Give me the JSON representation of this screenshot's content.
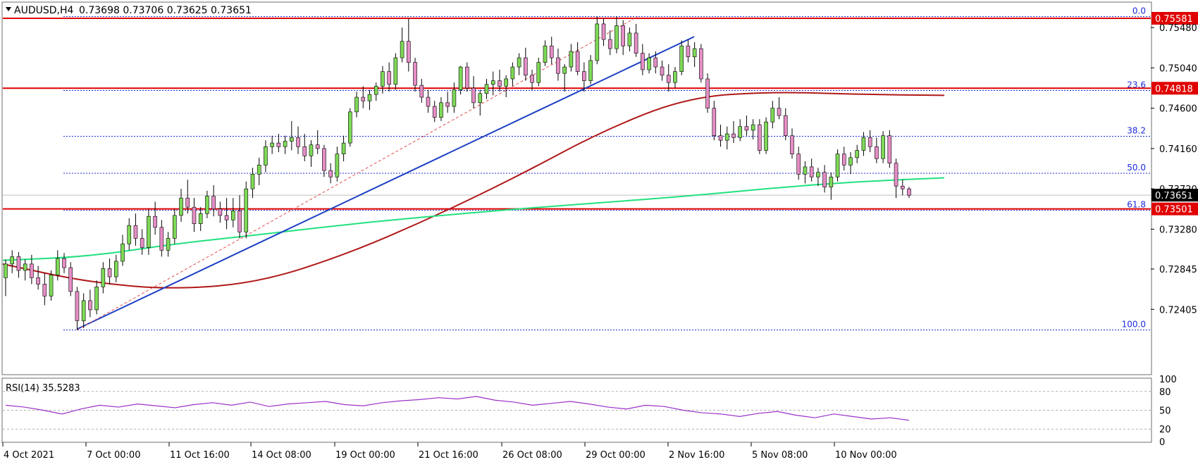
{
  "chart_data": {
    "type": "candlestick",
    "symbol_header": "AUDUSD,H4",
    "ohlc_header": [
      "0.73698",
      "0.73706",
      "0.73625",
      "0.73651"
    ],
    "current_price": "0.73651",
    "price_ticks": [
      "0.75480",
      "0.75040",
      "0.74600",
      "0.74160",
      "0.73720",
      "0.73280",
      "0.72845",
      "0.72405"
    ],
    "time_labels": [
      "4 Oct 2021",
      "7 Oct 00:00",
      "11 Oct 16:00",
      "14 Oct 08:00",
      "19 Oct 00:00",
      "21 Oct 16:00",
      "26 Oct 08:00",
      "29 Oct 00:00",
      "2 Nov 16:00",
      "5 Nov 08:00",
      "10 Nov 00:00"
    ],
    "horizontal_levels": [
      {
        "value": 0.75581,
        "label": "0.75581"
      },
      {
        "value": 0.74818,
        "label": "0.74818"
      },
      {
        "value": 0.73501,
        "label": "0.73501"
      }
    ],
    "fibonacci": {
      "high": 0.756,
      "low": 0.7218,
      "levels": [
        {
          "ratio": 0.0,
          "label": "0.0"
        },
        {
          "ratio": 0.236,
          "label": "23.6"
        },
        {
          "ratio": 0.382,
          "label": "38.2"
        },
        {
          "ratio": 0.5,
          "label": "50.0"
        },
        {
          "ratio": 0.618,
          "label": "61.8"
        },
        {
          "ratio": 1.0,
          "label": "100.0"
        }
      ]
    },
    "trendline": {
      "from": [
        0.7219
      ],
      "to": [
        0.7538
      ]
    },
    "ma_fast": [
      0.7294,
      0.7298,
      0.7312,
      0.7322,
      0.7333,
      0.7342,
      0.735,
      0.7357,
      0.7364,
      0.7373,
      0.738,
      0.7384
    ],
    "ma_slow": [
      0.729,
      0.727,
      0.7262,
      0.727,
      0.73,
      0.734,
      0.7385,
      0.7435,
      0.7472,
      0.7478,
      0.7475,
      0.7474
    ],
    "candles": [
      [
        0.7275,
        0.7295,
        0.7255,
        0.729
      ],
      [
        0.729,
        0.7305,
        0.728,
        0.7298
      ],
      [
        0.7298,
        0.7303,
        0.7275,
        0.7283
      ],
      [
        0.7283,
        0.7295,
        0.7272,
        0.729
      ],
      [
        0.729,
        0.73,
        0.7268,
        0.7275
      ],
      [
        0.7275,
        0.7288,
        0.7262,
        0.7268
      ],
      [
        0.7268,
        0.728,
        0.7245,
        0.7255
      ],
      [
        0.7255,
        0.7283,
        0.725,
        0.7278
      ],
      [
        0.7278,
        0.7305,
        0.7272,
        0.7296
      ],
      [
        0.7296,
        0.7302,
        0.728,
        0.7286
      ],
      [
        0.7286,
        0.7292,
        0.7255,
        0.726
      ],
      [
        0.726,
        0.7265,
        0.7218,
        0.7228
      ],
      [
        0.7228,
        0.7258,
        0.722,
        0.725
      ],
      [
        0.725,
        0.7262,
        0.7232,
        0.724
      ],
      [
        0.724,
        0.7272,
        0.7235,
        0.7265
      ],
      [
        0.7265,
        0.7292,
        0.7258,
        0.7285
      ],
      [
        0.7285,
        0.7296,
        0.7268,
        0.7276
      ],
      [
        0.7276,
        0.73,
        0.727,
        0.7293
      ],
      [
        0.7293,
        0.7322,
        0.7288,
        0.7312
      ],
      [
        0.7312,
        0.734,
        0.7305,
        0.7332
      ],
      [
        0.7332,
        0.7345,
        0.731,
        0.7318
      ],
      [
        0.7318,
        0.7328,
        0.73,
        0.7308
      ],
      [
        0.7308,
        0.735,
        0.73,
        0.7342
      ],
      [
        0.7342,
        0.7358,
        0.7322,
        0.733
      ],
      [
        0.733,
        0.7338,
        0.7298,
        0.7305
      ],
      [
        0.7305,
        0.7325,
        0.7298,
        0.7318
      ],
      [
        0.7318,
        0.735,
        0.7312,
        0.7343
      ],
      [
        0.7343,
        0.7372,
        0.7336,
        0.7362
      ],
      [
        0.7362,
        0.7382,
        0.7345,
        0.7352
      ],
      [
        0.7352,
        0.7362,
        0.7325,
        0.7334
      ],
      [
        0.7334,
        0.7352,
        0.7326,
        0.7345
      ],
      [
        0.7345,
        0.737,
        0.734,
        0.7364
      ],
      [
        0.7364,
        0.7376,
        0.7342,
        0.735
      ],
      [
        0.735,
        0.7358,
        0.7335,
        0.7343
      ],
      [
        0.7343,
        0.7362,
        0.7328,
        0.7338
      ],
      [
        0.7338,
        0.7362,
        0.733,
        0.7348
      ],
      [
        0.7348,
        0.7365,
        0.7318,
        0.7325
      ],
      [
        0.7325,
        0.738,
        0.7318,
        0.7372
      ],
      [
        0.7372,
        0.7395,
        0.7362,
        0.7388
      ],
      [
        0.7388,
        0.7406,
        0.7376,
        0.7398
      ],
      [
        0.7398,
        0.7425,
        0.739,
        0.7418
      ],
      [
        0.7418,
        0.743,
        0.741,
        0.7422
      ],
      [
        0.7422,
        0.7432,
        0.7412,
        0.7418
      ],
      [
        0.7418,
        0.743,
        0.741,
        0.7424
      ],
      [
        0.7424,
        0.7446,
        0.7414,
        0.7428
      ],
      [
        0.7428,
        0.744,
        0.741,
        0.7418
      ],
      [
        0.7418,
        0.7432,
        0.7402,
        0.7408
      ],
      [
        0.7408,
        0.7425,
        0.7396,
        0.742
      ],
      [
        0.742,
        0.7436,
        0.741,
        0.7416
      ],
      [
        0.7416,
        0.742,
        0.7385,
        0.7392
      ],
      [
        0.7392,
        0.74,
        0.7378,
        0.7385
      ],
      [
        0.7385,
        0.7418,
        0.738,
        0.741
      ],
      [
        0.741,
        0.743,
        0.7402,
        0.7422
      ],
      [
        0.7422,
        0.746,
        0.7418,
        0.7456
      ],
      [
        0.7456,
        0.7478,
        0.745,
        0.7472
      ],
      [
        0.7472,
        0.7484,
        0.746,
        0.7468
      ],
      [
        0.7468,
        0.748,
        0.7458,
        0.7475
      ],
      [
        0.7475,
        0.7488,
        0.7468,
        0.7484
      ],
      [
        0.7484,
        0.7506,
        0.7476,
        0.75
      ],
      [
        0.75,
        0.751,
        0.7478,
        0.7486
      ],
      [
        0.7486,
        0.752,
        0.748,
        0.7515
      ],
      [
        0.7515,
        0.7548,
        0.751,
        0.7533
      ],
      [
        0.7533,
        0.7558,
        0.75,
        0.751
      ],
      [
        0.751,
        0.7515,
        0.7478,
        0.7485
      ],
      [
        0.7485,
        0.7492,
        0.7466,
        0.7472
      ],
      [
        0.7472,
        0.748,
        0.7455,
        0.7462
      ],
      [
        0.7462,
        0.7468,
        0.7445,
        0.745
      ],
      [
        0.745,
        0.7472,
        0.7446,
        0.7466
      ],
      [
        0.7466,
        0.7478,
        0.7455,
        0.7462
      ],
      [
        0.7462,
        0.7488,
        0.7455,
        0.748
      ],
      [
        0.748,
        0.7506,
        0.7475,
        0.7505
      ],
      [
        0.7505,
        0.751,
        0.7478,
        0.7482
      ],
      [
        0.7482,
        0.7495,
        0.746,
        0.7466
      ],
      [
        0.7466,
        0.748,
        0.7452,
        0.7476
      ],
      [
        0.7476,
        0.7492,
        0.747,
        0.7486
      ],
      [
        0.7486,
        0.75,
        0.7474,
        0.749
      ],
      [
        0.749,
        0.7502,
        0.7478,
        0.7484
      ],
      [
        0.7484,
        0.7496,
        0.7472,
        0.7492
      ],
      [
        0.7492,
        0.751,
        0.7484,
        0.7505
      ],
      [
        0.7505,
        0.752,
        0.7496,
        0.7515
      ],
      [
        0.7515,
        0.7526,
        0.749,
        0.7496
      ],
      [
        0.7496,
        0.7502,
        0.748,
        0.7488
      ],
      [
        0.7488,
        0.7515,
        0.7484,
        0.751
      ],
      [
        0.751,
        0.7534,
        0.7506,
        0.7528
      ],
      [
        0.7528,
        0.7538,
        0.7508,
        0.7515
      ],
      [
        0.7515,
        0.7525,
        0.749,
        0.7498
      ],
      [
        0.7498,
        0.7508,
        0.7478,
        0.7505
      ],
      [
        0.7505,
        0.753,
        0.75,
        0.7522
      ],
      [
        0.7522,
        0.7532,
        0.7496,
        0.75
      ],
      [
        0.75,
        0.751,
        0.7478,
        0.749
      ],
      [
        0.749,
        0.7518,
        0.7486,
        0.7512
      ],
      [
        0.7512,
        0.756,
        0.7508,
        0.7552
      ],
      [
        0.7552,
        0.7558,
        0.7528,
        0.7535
      ],
      [
        0.7535,
        0.7545,
        0.7518,
        0.7525
      ],
      [
        0.7525,
        0.756,
        0.752,
        0.755
      ],
      [
        0.755,
        0.7556,
        0.7518,
        0.7528
      ],
      [
        0.7528,
        0.7548,
        0.7522,
        0.7542
      ],
      [
        0.7542,
        0.7552,
        0.7516,
        0.752
      ],
      [
        0.752,
        0.753,
        0.7496,
        0.7502
      ],
      [
        0.7502,
        0.752,
        0.7498,
        0.7515
      ],
      [
        0.7515,
        0.7522,
        0.7498,
        0.7505
      ],
      [
        0.7505,
        0.7512,
        0.749,
        0.7496
      ],
      [
        0.7496,
        0.7508,
        0.7478,
        0.7488
      ],
      [
        0.7488,
        0.7505,
        0.7482,
        0.75
      ],
      [
        0.75,
        0.7534,
        0.7496,
        0.7528
      ],
      [
        0.7528,
        0.7535,
        0.751,
        0.7516
      ],
      [
        0.7516,
        0.7532,
        0.7505,
        0.7525
      ],
      [
        0.7525,
        0.753,
        0.7488,
        0.7492
      ],
      [
        0.7492,
        0.7498,
        0.7455,
        0.746
      ],
      [
        0.746,
        0.7468,
        0.7425,
        0.743
      ],
      [
        0.743,
        0.7442,
        0.7418,
        0.7425
      ],
      [
        0.7425,
        0.744,
        0.7415,
        0.7432
      ],
      [
        0.7432,
        0.7446,
        0.7422,
        0.7428
      ],
      [
        0.7428,
        0.7448,
        0.7424,
        0.744
      ],
      [
        0.744,
        0.7452,
        0.743,
        0.7436
      ],
      [
        0.7436,
        0.7448,
        0.7426,
        0.7442
      ],
      [
        0.7442,
        0.7448,
        0.741,
        0.7414
      ],
      [
        0.7414,
        0.745,
        0.741,
        0.7445
      ],
      [
        0.7445,
        0.7468,
        0.7438,
        0.746
      ],
      [
        0.746,
        0.7472,
        0.7448,
        0.7452
      ],
      [
        0.7452,
        0.746,
        0.7425,
        0.743
      ],
      [
        0.743,
        0.7438,
        0.7405,
        0.741
      ],
      [
        0.741,
        0.7418,
        0.7382,
        0.7388
      ],
      [
        0.7388,
        0.7402,
        0.7378,
        0.7396
      ],
      [
        0.7396,
        0.7405,
        0.738,
        0.7385
      ],
      [
        0.7385,
        0.7395,
        0.7375,
        0.739
      ],
      [
        0.739,
        0.7398,
        0.7368,
        0.7374
      ],
      [
        0.7374,
        0.739,
        0.736,
        0.7385
      ],
      [
        0.7385,
        0.7415,
        0.738,
        0.741
      ],
      [
        0.741,
        0.7418,
        0.7392,
        0.7398
      ],
      [
        0.7398,
        0.7412,
        0.7388,
        0.7406
      ],
      [
        0.7406,
        0.742,
        0.74,
        0.7414
      ],
      [
        0.7414,
        0.7434,
        0.7408,
        0.7428
      ],
      [
        0.7428,
        0.7436,
        0.7412,
        0.7418
      ],
      [
        0.7418,
        0.7428,
        0.74,
        0.7405
      ],
      [
        0.7405,
        0.7435,
        0.74,
        0.743
      ],
      [
        0.743,
        0.7436,
        0.7395,
        0.74
      ],
      [
        0.74,
        0.7405,
        0.7362,
        0.7375
      ],
      [
        0.7375,
        0.7382,
        0.7365,
        0.7372
      ],
      [
        0.7372,
        0.7374,
        0.7362,
        0.7365
      ]
    ],
    "rsi_label": "RSI(14) 35.5283",
    "rsi_ticks": [
      "100",
      "80",
      "50",
      "20",
      "0"
    ],
    "rsi_values": [
      58,
      55,
      50,
      44,
      52,
      58,
      55,
      60,
      57,
      54,
      59,
      62,
      58,
      63,
      56,
      60,
      62,
      64,
      59,
      57,
      62,
      65,
      67,
      70,
      68,
      72,
      66,
      63,
      58,
      61,
      64,
      60,
      55,
      52,
      58,
      56,
      50,
      46,
      44,
      40,
      45,
      48,
      42,
      38,
      44,
      40,
      36,
      38,
      34
    ],
    "colors": {
      "bull": "#7ed957",
      "bear": "#e58ec6",
      "level": "#e00000",
      "fib": "#1c2bd6",
      "trend": "#1c3fc4",
      "channel": "#e05050",
      "ma_fast": "#22e07e",
      "ma_slow": "#b01818",
      "rsi": "#9b30c8"
    }
  }
}
